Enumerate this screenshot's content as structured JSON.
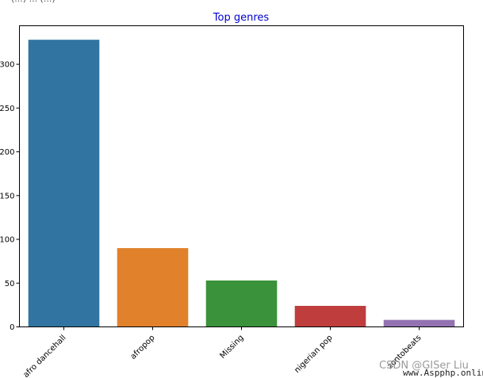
{
  "top_text": "(...) ... (...)",
  "chart_data": {
    "type": "bar",
    "title": "Top genres",
    "xlabel": "",
    "ylabel": "",
    "categories": [
      "afro dancehall",
      "afropop",
      "Missing",
      "nigerian pop",
      "zontobeats"
    ],
    "values": [
      328,
      90,
      53,
      24,
      8
    ],
    "colors": [
      "#3274a1",
      "#e1812c",
      "#3a923a",
      "#c03d3e",
      "#9372b2"
    ],
    "yticks": [
      0,
      50,
      100,
      150,
      200,
      250,
      300
    ],
    "ylim": [
      0,
      344
    ],
    "grid": false,
    "title_color": "#0000cc"
  },
  "watermark": {
    "text1": "CSDN @GISer Liu",
    "text2": "www.Aspphp.online"
  }
}
